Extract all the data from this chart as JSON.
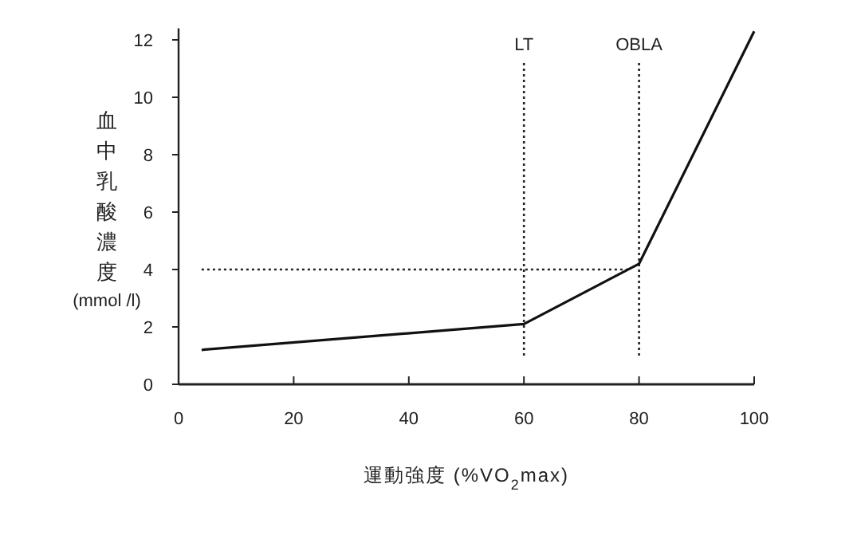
{
  "chart_data": {
    "type": "line",
    "xlabel": "運動強度 (%VO$_{2}$max)",
    "ylabel": "血中乳酸濃度(mmol /l)",
    "x": [
      4,
      60,
      80,
      100
    ],
    "series": [
      {
        "color": "#111111",
        "values": [
          1.2,
          2.1,
          4.2,
          12.3
        ]
      }
    ],
    "xlim": [
      0,
      100
    ],
    "ylim": [
      0,
      12.4
    ],
    "xticks": [
      0,
      20,
      40,
      60,
      80,
      100
    ],
    "yticks": [
      0,
      2,
      4,
      6,
      8,
      10,
      12
    ],
    "line_style": "solid",
    "marker": "none",
    "grid": false,
    "ref_lines": [
      {
        "axis": "x",
        "value": 60,
        "label": "LT",
        "line_style": "dotted",
        "color": "#222222"
      },
      {
        "axis": "x",
        "value": 80,
        "label": "OBLA",
        "line_style": "dotted",
        "color": "#222222"
      },
      {
        "axis": "y",
        "value": 4,
        "label": null,
        "line_style": "dotted",
        "color": "#222222"
      }
    ]
  }
}
